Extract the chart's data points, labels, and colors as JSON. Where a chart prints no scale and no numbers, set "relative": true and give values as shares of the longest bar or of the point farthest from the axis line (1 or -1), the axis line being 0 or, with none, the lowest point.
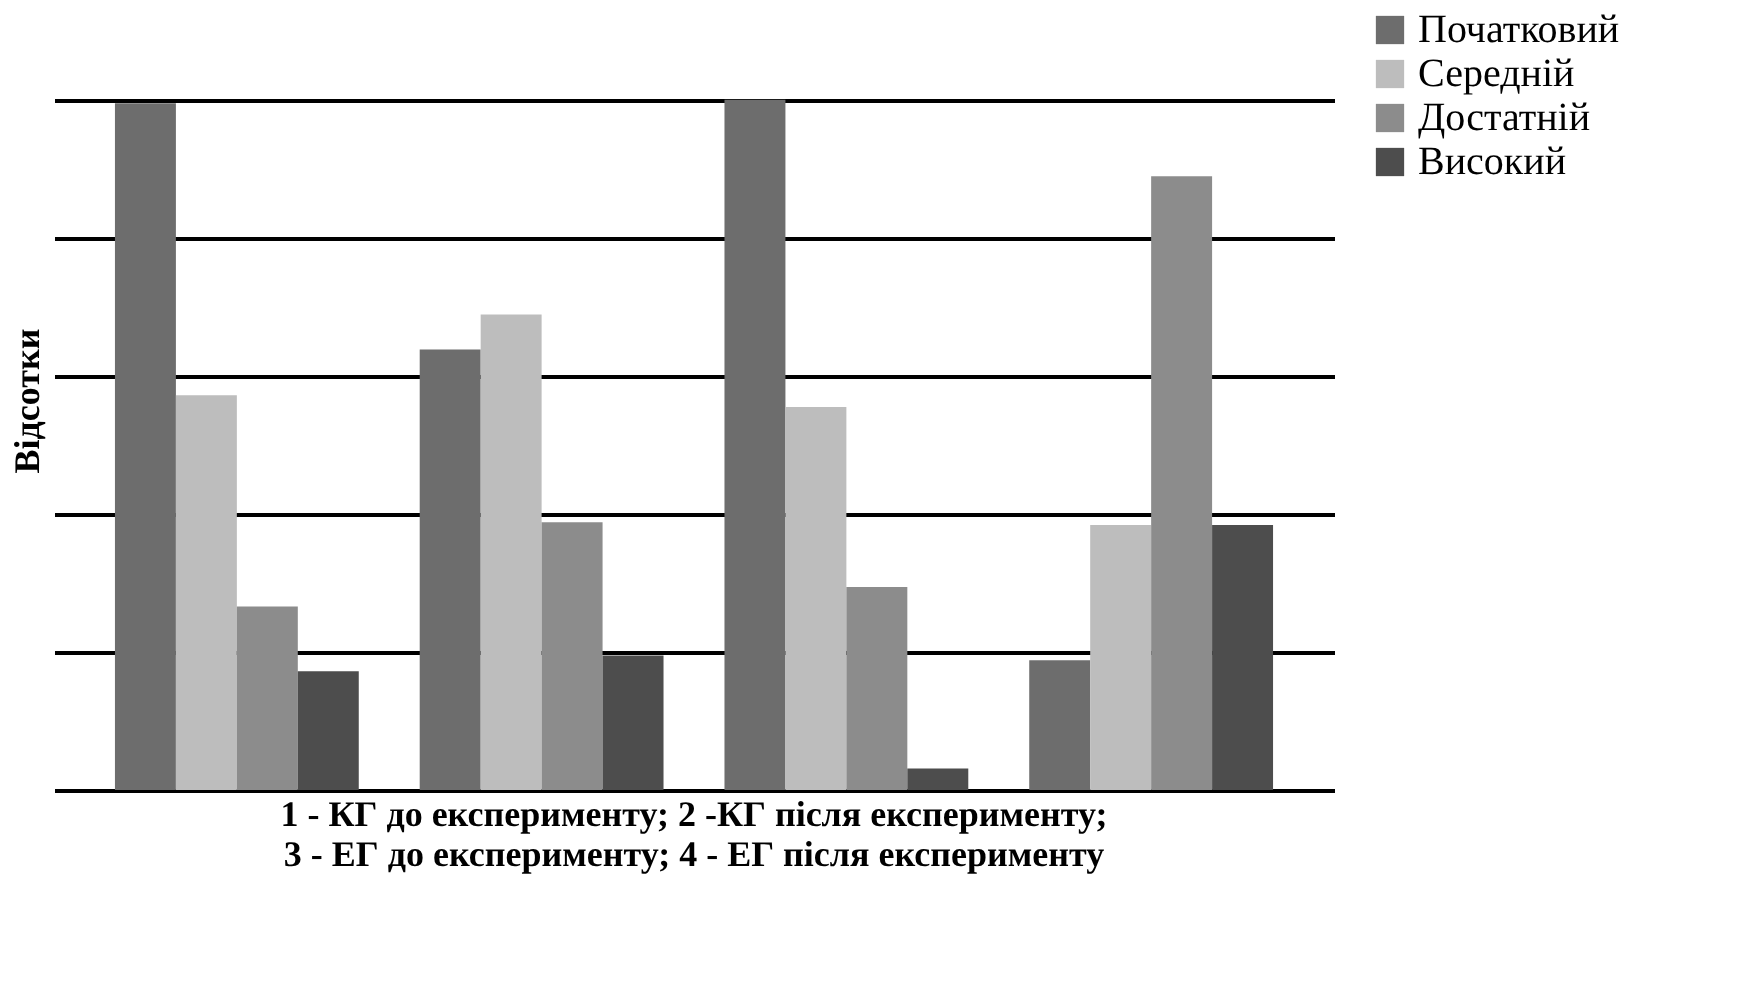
{
  "chart_data": {
    "type": "bar",
    "relative": true,
    "categories": [
      null,
      null,
      null,
      null
    ],
    "ylabel": "Відсотки",
    "series": [
      {
        "name": "Початковий",
        "color": "#6d6d6d",
        "values": [
          0.995,
          0.638,
          1,
          0.188
        ]
      },
      {
        "name": "Середній",
        "color": "#bdbdbd",
        "values": [
          0.572,
          0.689,
          0.555,
          0.384
        ]
      },
      {
        "name": "Достатній",
        "color": "#8c8c8c",
        "values": [
          0.266,
          0.388,
          0.294,
          0.889
        ]
      },
      {
        "name": "Високий",
        "color": "#4d4d4d",
        "values": [
          0.172,
          0.195,
          0.031,
          0.384
        ]
      }
    ],
    "annotations": [
      "1 - КГ до експерименту; 2 -КГ після експерименту;",
      "3 - ЕГ до експерименту; 4 - ЕГ після експерименту"
    ],
    "grid": "y",
    "legend": "right"
  }
}
